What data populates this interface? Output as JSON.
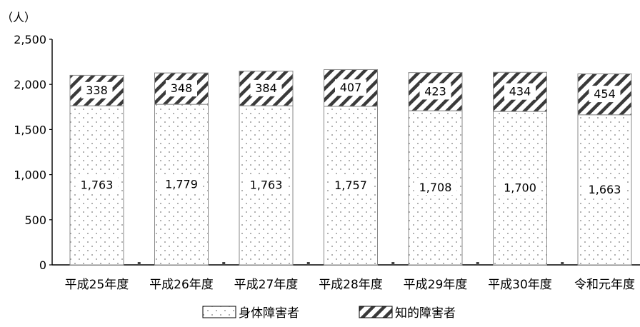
{
  "chart_data": {
    "type": "bar",
    "stacked": true,
    "unit_label": "（人）",
    "categories": [
      "平成25年度",
      "平成26年度",
      "平成27年度",
      "平成28年度",
      "平成29年度",
      "平成30年度",
      "令和元年度"
    ],
    "series": [
      {
        "name": "身体障害者",
        "values": [
          1763,
          1779,
          1763,
          1757,
          1708,
          1700,
          1663
        ],
        "pattern": "dots",
        "color": "#000000"
      },
      {
        "name": "知的障害者",
        "values": [
          338,
          348,
          384,
          407,
          423,
          434,
          454
        ],
        "pattern": "diagonal-stripes",
        "color": "#000000"
      }
    ],
    "y_ticks": [
      "0",
      "500",
      "1,000",
      "1,500",
      "2,000",
      "2,500"
    ],
    "data_labels": [
      [
        "1,763",
        "1,779",
        "1,763",
        "1,757",
        "1,708",
        "1,700",
        "1,663"
      ],
      [
        "338",
        "348",
        "384",
        "407",
        "423",
        "434",
        "454"
      ]
    ],
    "ylim": [
      0,
      2500
    ],
    "grid": false,
    "legend_position": "bottom"
  }
}
